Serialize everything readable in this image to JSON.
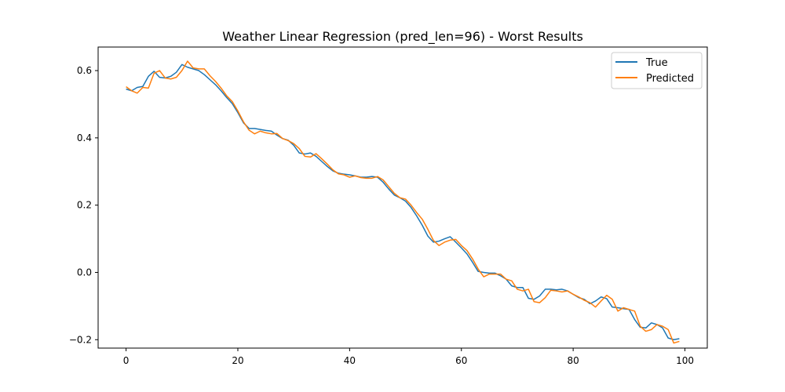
{
  "chart_data": {
    "type": "line",
    "title": "Weather Linear Regression (pred_len=96) - Worst Results",
    "xlabel": "",
    "ylabel": "",
    "xlim": [
      -5,
      104
    ],
    "ylim": [
      -0.225,
      0.67
    ],
    "xticks": [
      0,
      20,
      40,
      60,
      80,
      100
    ],
    "yticks": [
      -0.2,
      0.0,
      0.2,
      0.4,
      0.6
    ],
    "xtick_labels": [
      "0",
      "20",
      "40",
      "60",
      "80",
      "100"
    ],
    "ytick_labels": [
      "−0.2",
      "0.0",
      "0.2",
      "0.4",
      "0.6"
    ],
    "grid": false,
    "legend_position": "top-right",
    "series": [
      {
        "name": "True",
        "color": "#1f77b4",
        "values": [
          0.545,
          0.54,
          0.55,
          0.553,
          0.583,
          0.598,
          0.58,
          0.578,
          0.583,
          0.595,
          0.618,
          0.61,
          0.605,
          0.6,
          0.588,
          0.573,
          0.558,
          0.54,
          0.52,
          0.502,
          0.475,
          0.445,
          0.428,
          0.428,
          0.425,
          0.422,
          0.42,
          0.408,
          0.398,
          0.393,
          0.378,
          0.355,
          0.352,
          0.355,
          0.345,
          0.33,
          0.315,
          0.302,
          0.295,
          0.292,
          0.29,
          0.287,
          0.283,
          0.283,
          0.285,
          0.283,
          0.268,
          0.248,
          0.23,
          0.222,
          0.212,
          0.193,
          0.168,
          0.14,
          0.108,
          0.09,
          0.093,
          0.1,
          0.106,
          0.09,
          0.073,
          0.055,
          0.03,
          0.003,
          0.0,
          -0.002,
          -0.002,
          -0.01,
          -0.02,
          -0.04,
          -0.045,
          -0.045,
          -0.077,
          -0.08,
          -0.07,
          -0.05,
          -0.05,
          -0.052,
          -0.05,
          -0.055,
          -0.065,
          -0.075,
          -0.08,
          -0.093,
          -0.085,
          -0.073,
          -0.078,
          -0.103,
          -0.105,
          -0.108,
          -0.11,
          -0.14,
          -0.163,
          -0.165,
          -0.15,
          -0.155,
          -0.165,
          -0.195,
          -0.2,
          -0.197
        ]
      },
      {
        "name": "Predicted",
        "color": "#ff7f0e",
        "values": [
          0.552,
          0.54,
          0.533,
          0.55,
          0.548,
          0.592,
          0.6,
          0.578,
          0.575,
          0.58,
          0.6,
          0.628,
          0.608,
          0.605,
          0.605,
          0.585,
          0.568,
          0.548,
          0.525,
          0.508,
          0.48,
          0.448,
          0.423,
          0.412,
          0.42,
          0.415,
          0.412,
          0.413,
          0.398,
          0.392,
          0.383,
          0.368,
          0.345,
          0.343,
          0.353,
          0.338,
          0.322,
          0.305,
          0.293,
          0.29,
          0.283,
          0.287,
          0.282,
          0.28,
          0.28,
          0.285,
          0.275,
          0.255,
          0.235,
          0.222,
          0.218,
          0.2,
          0.178,
          0.158,
          0.128,
          0.095,
          0.08,
          0.09,
          0.096,
          0.098,
          0.08,
          0.065,
          0.04,
          0.01,
          -0.013,
          -0.005,
          -0.005,
          -0.005,
          -0.02,
          -0.025,
          -0.05,
          -0.055,
          -0.05,
          -0.087,
          -0.09,
          -0.075,
          -0.053,
          -0.055,
          -0.058,
          -0.055,
          -0.065,
          -0.073,
          -0.083,
          -0.09,
          -0.103,
          -0.085,
          -0.068,
          -0.08,
          -0.115,
          -0.105,
          -0.11,
          -0.115,
          -0.16,
          -0.175,
          -0.17,
          -0.155,
          -0.16,
          -0.17,
          -0.21,
          -0.205
        ]
      }
    ]
  }
}
